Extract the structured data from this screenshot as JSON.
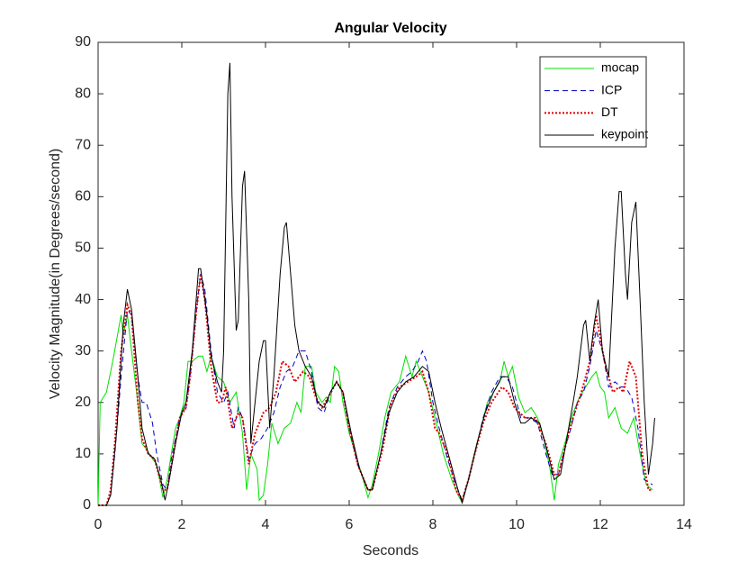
{
  "chart_data": {
    "type": "line",
    "title": "Angular Velocity",
    "x_label": "Seconds",
    "y_label": "Velocity Magnitude(in Degrees/second)",
    "xlim": [
      0,
      14
    ],
    "xticks": [
      0,
      2,
      4,
      6,
      8,
      10,
      12,
      14
    ],
    "ylim": [
      0,
      90
    ],
    "yticks": [
      0,
      10,
      20,
      30,
      40,
      50,
      60,
      70,
      80,
      90
    ],
    "legend": "northeast",
    "series": [
      {
        "name": "mocap",
        "color": "#00e000",
        "style": "solid",
        "x": [
          0,
          0.05,
          0.2,
          0.35,
          0.55,
          0.6,
          0.7,
          0.8,
          0.95,
          1.05,
          1.15,
          1.3,
          1.4,
          1.55,
          1.65,
          1.75,
          1.85,
          1.95,
          2.05,
          2.15,
          2.25,
          2.4,
          2.5,
          2.6,
          2.7,
          2.85,
          3.0,
          3.15,
          3.3,
          3.45,
          3.55,
          3.65,
          3.8,
          3.85,
          3.95,
          4.05,
          4.15,
          4.3,
          4.45,
          4.6,
          4.75,
          4.85,
          4.95,
          5.1,
          5.2,
          5.35,
          5.45,
          5.55,
          5.65,
          5.75,
          5.85,
          6.0,
          6.15,
          6.3,
          6.45,
          6.55,
          6.7,
          6.85,
          7.0,
          7.2,
          7.35,
          7.5,
          7.6,
          7.75,
          7.9,
          8.05,
          8.25,
          8.45,
          8.6,
          8.7,
          8.85,
          9.0,
          9.15,
          9.3,
          9.45,
          9.6,
          9.7,
          9.8,
          9.9,
          10.05,
          10.2,
          10.35,
          10.5,
          10.65,
          10.8,
          10.9,
          11.0,
          11.15,
          11.35,
          11.5,
          11.65,
          11.8,
          11.9,
          12.0,
          12.1,
          12.2,
          12.35,
          12.5,
          12.65,
          12.8,
          12.95,
          13.1,
          13.25
        ],
        "values": [
          0,
          20,
          22,
          28,
          37,
          33,
          37,
          30,
          20,
          12,
          11,
          9,
          8,
          1.5,
          5,
          10,
          15,
          17,
          20,
          28,
          28,
          29,
          29,
          26,
          29,
          25,
          24,
          20,
          22,
          14,
          3,
          10,
          7,
          1,
          2,
          8,
          16,
          12,
          15,
          16,
          20,
          18,
          27,
          27,
          22,
          20,
          21,
          20,
          27,
          26,
          20,
          14,
          10,
          6,
          1.5,
          4,
          10,
          17,
          22,
          24,
          29,
          25,
          28,
          25,
          22,
          17,
          10,
          5,
          2,
          0.5,
          5,
          10,
          15,
          20,
          22,
          24,
          28,
          25,
          27,
          21,
          18,
          19,
          17,
          13,
          7,
          1,
          8,
          12,
          18,
          21,
          23,
          25,
          26,
          23,
          22,
          17,
          19,
          15,
          14,
          17,
          10,
          4,
          3
        ]
      },
      {
        "name": "ICP",
        "color": "#0000c0",
        "style": "dashed",
        "x": [
          0,
          0.2,
          0.3,
          0.4,
          0.55,
          0.7,
          0.8,
          0.95,
          1.05,
          1.15,
          1.3,
          1.4,
          1.55,
          1.65,
          1.75,
          1.95,
          2.1,
          2.2,
          2.35,
          2.45,
          2.55,
          2.7,
          2.85,
          3.0,
          3.1,
          3.25,
          3.35,
          3.45,
          3.6,
          3.75,
          3.9,
          4.05,
          4.2,
          4.35,
          4.5,
          4.65,
          4.8,
          4.95,
          5.1,
          5.25,
          5.4,
          5.55,
          5.7,
          5.85,
          6.0,
          6.2,
          6.45,
          6.55,
          6.75,
          6.95,
          7.15,
          7.35,
          7.5,
          7.65,
          7.75,
          7.85,
          8.0,
          8.15,
          8.35,
          8.55,
          8.7,
          8.85,
          9.0,
          9.2,
          9.4,
          9.6,
          9.75,
          9.9,
          10.1,
          10.3,
          10.5,
          10.7,
          10.85,
          11.0,
          11.15,
          11.3,
          11.45,
          11.6,
          11.75,
          11.9,
          12.05,
          12.2,
          12.35,
          12.5,
          12.6,
          12.75,
          12.9,
          13.05,
          13.25
        ],
        "values": [
          0,
          0,
          2,
          10,
          25,
          38,
          37,
          25,
          20,
          20,
          16,
          10,
          4,
          3,
          9,
          17,
          19,
          25,
          38,
          45,
          42,
          30,
          22,
          20,
          22,
          15,
          19,
          17,
          9,
          12,
          13,
          15,
          18,
          23,
          26,
          27,
          30,
          30,
          26,
          19,
          18,
          22,
          24,
          22,
          15,
          8,
          3,
          3,
          10,
          19,
          23,
          25,
          26,
          28,
          30,
          28,
          20,
          15,
          9,
          4,
          1,
          5,
          10,
          17,
          22,
          25,
          25,
          23,
          17,
          17,
          16,
          10,
          6,
          6,
          11,
          15,
          20,
          22,
          27,
          34,
          30,
          23,
          24,
          23,
          23,
          21,
          15,
          5,
          4
        ]
      },
      {
        "name": "DT",
        "color": "#e00000",
        "style": "dotted",
        "x": [
          0,
          0.2,
          0.3,
          0.4,
          0.55,
          0.7,
          0.8,
          0.95,
          1.05,
          1.2,
          1.35,
          1.55,
          1.65,
          1.8,
          1.95,
          2.1,
          2.2,
          2.35,
          2.45,
          2.55,
          2.7,
          2.85,
          2.95,
          3.05,
          3.2,
          3.35,
          3.45,
          3.6,
          3.75,
          3.95,
          4.1,
          4.25,
          4.4,
          4.55,
          4.7,
          4.9,
          5.05,
          5.2,
          5.35,
          5.5,
          5.7,
          5.85,
          6.0,
          6.2,
          6.45,
          6.55,
          6.8,
          7.0,
          7.2,
          7.4,
          7.6,
          7.75,
          7.9,
          8.05,
          8.15,
          8.35,
          8.55,
          8.7,
          8.85,
          9.0,
          9.2,
          9.4,
          9.65,
          9.8,
          9.95,
          10.2,
          10.45,
          10.7,
          10.9,
          11.0,
          11.15,
          11.35,
          11.55,
          11.75,
          11.9,
          12.1,
          12.3,
          12.45,
          12.55,
          12.7,
          12.85,
          13.0,
          13.15,
          13.25
        ],
        "values": [
          0,
          0,
          3,
          12,
          30,
          39,
          37,
          20,
          13,
          10,
          9,
          3,
          3,
          10,
          17,
          19,
          25,
          38,
          45,
          40,
          27,
          20,
          20,
          23,
          15,
          18,
          17,
          8,
          14,
          18,
          19,
          22,
          28,
          27,
          24,
          26,
          25,
          21,
          19,
          21,
          24,
          22,
          15,
          8,
          3,
          3,
          11,
          20,
          23,
          24,
          25,
          26,
          22,
          15,
          14,
          10,
          3,
          1,
          5,
          10,
          16,
          20,
          23,
          22,
          19,
          17,
          17,
          12,
          6,
          6,
          11,
          17,
          22,
          28,
          37,
          28,
          22,
          23,
          22,
          28,
          25,
          10,
          3,
          3
        ]
      },
      {
        "name": "keypoint",
        "color": "#000000",
        "style": "solid",
        "x": [
          0,
          0.2,
          0.3,
          0.45,
          0.6,
          0.7,
          0.8,
          0.95,
          1.05,
          1.2,
          1.35,
          1.5,
          1.6,
          1.7,
          1.85,
          2.0,
          2.1,
          2.25,
          2.4,
          2.45,
          2.6,
          2.7,
          2.85,
          2.95,
          3.0,
          3.1,
          3.15,
          3.2,
          3.3,
          3.35,
          3.45,
          3.5,
          3.6,
          3.65,
          3.75,
          3.85,
          3.95,
          4.0,
          4.1,
          4.2,
          4.35,
          4.45,
          4.5,
          4.6,
          4.7,
          4.8,
          4.95,
          5.1,
          5.25,
          5.4,
          5.55,
          5.7,
          5.85,
          6.05,
          6.25,
          6.45,
          6.55,
          6.75,
          6.95,
          7.15,
          7.35,
          7.55,
          7.75,
          7.9,
          8.05,
          8.2,
          8.4,
          8.6,
          8.7,
          8.85,
          9.05,
          9.25,
          9.45,
          9.65,
          9.8,
          9.95,
          10.1,
          10.2,
          10.35,
          10.55,
          10.75,
          10.9,
          11.05,
          11.2,
          11.35,
          11.45,
          11.6,
          11.65,
          11.75,
          11.85,
          11.95,
          12.05,
          12.2,
          12.35,
          12.45,
          12.5,
          12.6,
          12.65,
          12.75,
          12.85,
          12.95,
          13.05,
          13.15,
          13.25,
          13.3
        ],
        "values": [
          0,
          0,
          2,
          15,
          35,
          42,
          38,
          25,
          15,
          10,
          9,
          5,
          1,
          5,
          12,
          18,
          20,
          30,
          46,
          46,
          37,
          29,
          24,
          22,
          30,
          80,
          86,
          60,
          34,
          36,
          62,
          65,
          40,
          12,
          20,
          28,
          32,
          32,
          15,
          25,
          45,
          54,
          55,
          45,
          35,
          30,
          27,
          25,
          20,
          19,
          22,
          24,
          22,
          14,
          7,
          3,
          3,
          10,
          18,
          22,
          24,
          25,
          27,
          26,
          20,
          15,
          9,
          3,
          0.5,
          5,
          12,
          18,
          22,
          25,
          25,
          20,
          16,
          16,
          17,
          16,
          10,
          5,
          6,
          13,
          20,
          25,
          35,
          36,
          28,
          35,
          40,
          30,
          25,
          50,
          61,
          61,
          45,
          40,
          55,
          59,
          40,
          20,
          6,
          12,
          17
        ]
      }
    ]
  }
}
